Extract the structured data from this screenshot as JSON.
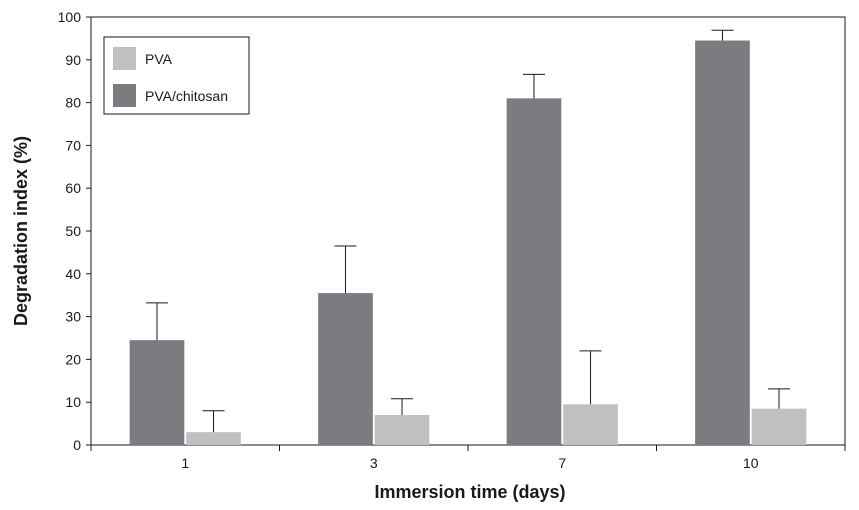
{
  "chart_data": {
    "type": "bar",
    "title": "",
    "xlabel": "Immersion time (days)",
    "ylabel": "Degradation index (%)",
    "categories": [
      "1",
      "3",
      "7",
      "10"
    ],
    "ylim": [
      0,
      100
    ],
    "yticks": [
      "0",
      "10",
      "20",
      "30",
      "40",
      "50",
      "60",
      "70",
      "80",
      "90",
      "100"
    ],
    "grid": false,
    "legend_position": "top-left",
    "series": [
      {
        "name": "PVA/chitosan",
        "color": "#7b7c80",
        "values": [
          24.5,
          35.5,
          81,
          94.5
        ],
        "error": [
          8.7,
          11,
          5.6,
          2.4
        ]
      },
      {
        "name": "PVA",
        "color": "#bfc0c2",
        "values": [
          3,
          7,
          9.5,
          8.5
        ],
        "error": [
          5,
          3.8,
          12.5,
          4.6
        ]
      }
    ],
    "legend_order": [
      "PVA",
      "PVA/chitosan"
    ]
  }
}
